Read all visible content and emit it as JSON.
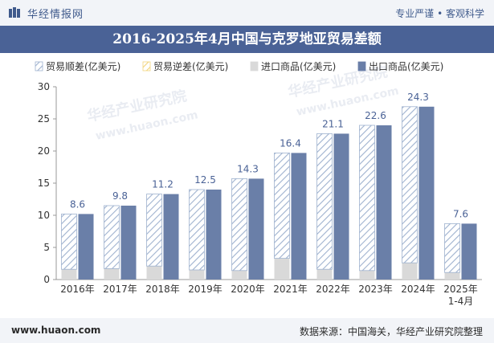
{
  "header": {
    "site_name": "华经情报网",
    "right_text": "专业严谨 • 客观科学"
  },
  "footer": {
    "website": "www.huaon.com",
    "source": "数据来源：中国海关，华经产业研究院整理"
  },
  "watermarks": [
    "华经产业研究院",
    "www.huaon.com"
  ],
  "colors": {
    "title_bar": "#4a6296",
    "export": "#6a7fa8",
    "import": "#d9d9d9",
    "surplus_stroke": "#9fb2cf",
    "deficit_stroke": "#f2d47a",
    "label": "#4a6296"
  },
  "chart_data": {
    "type": "bar",
    "title": "2016-2025年4月中国与克罗地亚贸易差额",
    "categories": [
      "2016年",
      "2017年",
      "2018年",
      "2019年",
      "2020年",
      "2021年",
      "2022年",
      "2023年",
      "2024年",
      "2025年\n1-4月"
    ],
    "series": [
      {
        "name": "贸易顺差(亿美元)",
        "values": [
          8.6,
          9.8,
          11.2,
          12.5,
          14.3,
          16.4,
          21.1,
          22.6,
          24.3,
          7.6
        ]
      },
      {
        "name": "贸易逆差(亿美元)",
        "values": [
          0,
          0,
          0,
          0,
          0,
          0,
          0,
          0,
          0,
          0
        ]
      },
      {
        "name": "进口商品(亿美元)",
        "values": [
          1.6,
          1.7,
          2.1,
          1.5,
          1.4,
          3.3,
          1.6,
          1.4,
          2.6,
          1.1
        ]
      },
      {
        "name": "出口商品(亿美元)",
        "values": [
          10.2,
          11.5,
          13.3,
          14.0,
          15.7,
          19.7,
          22.7,
          24.0,
          26.9,
          8.7
        ]
      }
    ],
    "y_ticks": [
      0,
      5,
      10,
      15,
      20,
      25,
      30
    ],
    "ylim": [
      0,
      30
    ],
    "legend_position": "top-right",
    "grid": false
  }
}
